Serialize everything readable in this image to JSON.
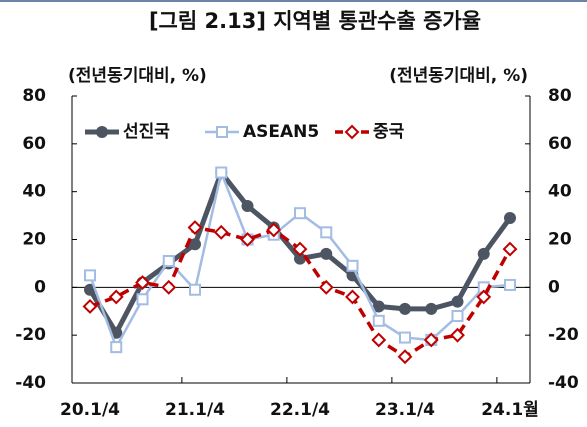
{
  "chart_data": {
    "type": "line",
    "title": "[그림 2.13] 지역별 통관수출 증가율",
    "y_label": "(전년동기대비, %)",
    "y2_label": "(전년동기대비, %)",
    "categories": [
      "20.1/4",
      null,
      null,
      null,
      "21.1/4",
      null,
      null,
      null,
      "22.1/4",
      null,
      null,
      null,
      "23.1/4",
      null,
      null,
      null,
      "24.1월"
    ],
    "series": [
      {
        "name": "선진국",
        "color": "#4d5562",
        "marker": "circle",
        "dashed": false,
        "values": [
          -1,
          -19,
          2,
          10,
          18,
          48,
          34,
          25,
          12,
          14,
          5,
          -8,
          -9,
          -9,
          -6,
          14,
          29
        ]
      },
      {
        "name": "ASEAN5",
        "color": "#a3bce3",
        "marker": "square",
        "dashed": false,
        "values": [
          5,
          -25,
          -5,
          11,
          -1,
          48,
          20,
          22,
          31,
          23,
          9,
          -14,
          -21,
          -22,
          -12,
          0,
          1
        ]
      },
      {
        "name": "중국",
        "color": "#c00000",
        "marker": "diamond",
        "dashed": true,
        "values": [
          -8,
          -4,
          2,
          0,
          25,
          23,
          20,
          24,
          16,
          0,
          -4,
          -22,
          -29,
          -22,
          -20,
          -4,
          16
        ]
      }
    ],
    "ylim": [
      -40,
      80
    ],
    "yticks": [
      -40,
      -20,
      0,
      20,
      40,
      60,
      80
    ],
    "y2lim": [
      -40,
      80
    ],
    "y2ticks": [
      -40,
      -20,
      0,
      20,
      40,
      60,
      80
    ],
    "legend": "upper left"
  }
}
